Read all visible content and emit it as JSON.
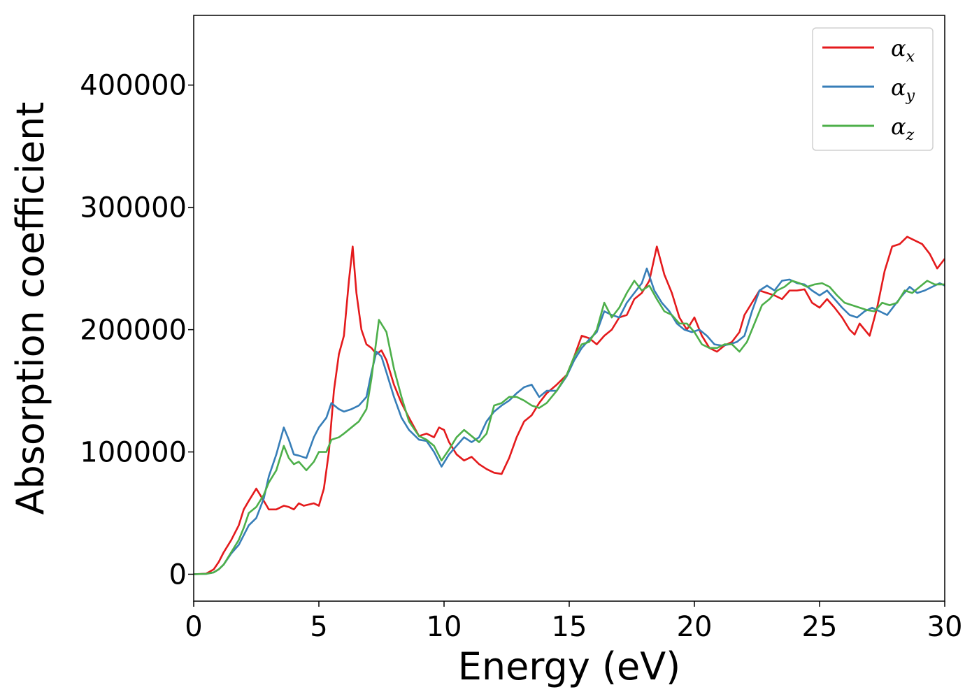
{
  "chart_data": {
    "type": "line",
    "xlabel": "Energy (eV)",
    "ylabel": "Absorption coefficient",
    "xlim": [
      0,
      30
    ],
    "ylim": [
      -22000,
      457000
    ],
    "xticks": [
      0,
      5,
      10,
      15,
      20,
      25,
      30
    ],
    "xtick_labels": [
      "0",
      "5",
      "10",
      "15",
      "20",
      "25",
      "30"
    ],
    "yticks": [
      0,
      100000,
      200000,
      300000,
      400000
    ],
    "ytick_labels": [
      "0",
      "100000",
      "200000",
      "300000",
      "400000"
    ],
    "grid": false,
    "legend_position": "top-right",
    "series": [
      {
        "name": "α",
        "name_sub": "x",
        "color": "#e41a1c",
        "x": [
          0,
          0.5,
          0.8,
          1.0,
          1.2,
          1.5,
          1.8,
          2.0,
          2.2,
          2.5,
          2.8,
          3.0,
          3.3,
          3.6,
          3.8,
          4.0,
          4.2,
          4.4,
          4.6,
          4.8,
          5.0,
          5.2,
          5.4,
          5.6,
          5.8,
          6.0,
          6.2,
          6.35,
          6.5,
          6.7,
          6.9,
          7.1,
          7.3,
          7.5,
          7.7,
          8.0,
          8.3,
          8.6,
          9.0,
          9.3,
          9.6,
          9.8,
          10.0,
          10.2,
          10.5,
          10.8,
          11.1,
          11.4,
          11.7,
          12.0,
          12.3,
          12.6,
          12.9,
          13.2,
          13.5,
          13.8,
          14.1,
          14.5,
          14.9,
          15.2,
          15.5,
          15.8,
          16.1,
          16.4,
          16.7,
          17.0,
          17.3,
          17.6,
          17.9,
          18.2,
          18.5,
          18.8,
          19.1,
          19.4,
          19.7,
          20.0,
          20.3,
          20.6,
          20.9,
          21.2,
          21.5,
          21.8,
          22.0,
          22.3,
          22.6,
          22.9,
          23.2,
          23.5,
          23.8,
          24.1,
          24.4,
          24.7,
          25.0,
          25.3,
          25.6,
          25.9,
          26.2,
          26.4,
          26.6,
          26.8,
          27.0,
          27.3,
          27.6,
          27.9,
          28.2,
          28.5,
          28.8,
          29.1,
          29.4,
          29.7,
          30.0
        ],
        "y": [
          0,
          500,
          4000,
          10000,
          18000,
          28000,
          40000,
          53000,
          60000,
          70000,
          60000,
          53000,
          53000,
          56000,
          55000,
          53000,
          58000,
          56000,
          57000,
          58000,
          56000,
          70000,
          100000,
          150000,
          180000,
          195000,
          240000,
          268000,
          230000,
          200000,
          188000,
          185000,
          180000,
          183000,
          175000,
          155000,
          140000,
          128000,
          113000,
          115000,
          112000,
          120000,
          118000,
          108000,
          98000,
          93000,
          96000,
          90000,
          86000,
          83000,
          82000,
          95000,
          112000,
          125000,
          130000,
          140000,
          148000,
          155000,
          163000,
          178000,
          195000,
          193000,
          188000,
          195000,
          200000,
          210000,
          212000,
          225000,
          230000,
          240000,
          268000,
          245000,
          230000,
          210000,
          200000,
          210000,
          195000,
          185000,
          182000,
          187000,
          190000,
          198000,
          212000,
          222000,
          232000,
          230000,
          228000,
          225000,
          232000,
          232000,
          233000,
          222000,
          218000,
          225000,
          218000,
          210000,
          200000,
          196000,
          205000,
          200000,
          195000,
          218000,
          248000,
          268000,
          270000,
          276000,
          273000,
          270000,
          262000,
          250000,
          258000
        ]
      },
      {
        "name": "α",
        "name_sub": "y",
        "color": "#377eb8",
        "x": [
          0,
          0.5,
          0.8,
          1.0,
          1.2,
          1.5,
          1.8,
          2.0,
          2.2,
          2.5,
          2.8,
          3.0,
          3.3,
          3.6,
          3.8,
          4.0,
          4.2,
          4.5,
          4.8,
          5.0,
          5.3,
          5.5,
          5.8,
          6.0,
          6.3,
          6.6,
          6.9,
          7.1,
          7.3,
          7.5,
          7.7,
          8.0,
          8.3,
          8.6,
          9.0,
          9.3,
          9.6,
          9.9,
          10.2,
          10.5,
          10.8,
          11.1,
          11.4,
          11.7,
          12.0,
          12.3,
          12.6,
          12.9,
          13.2,
          13.5,
          13.8,
          14.1,
          14.5,
          14.9,
          15.2,
          15.5,
          15.8,
          16.1,
          16.4,
          16.7,
          17.0,
          17.3,
          17.6,
          17.9,
          18.1,
          18.4,
          18.7,
          19.0,
          19.3,
          19.6,
          19.9,
          20.2,
          20.5,
          20.8,
          21.1,
          21.4,
          21.7,
          22.0,
          22.3,
          22.6,
          22.9,
          23.2,
          23.5,
          23.8,
          24.1,
          24.4,
          24.7,
          25.0,
          25.3,
          25.6,
          25.9,
          26.2,
          26.5,
          26.8,
          27.1,
          27.4,
          27.7,
          28.0,
          28.3,
          28.6,
          28.9,
          29.2,
          29.5,
          29.8,
          30.0
        ],
        "y": [
          0,
          300,
          1500,
          4000,
          8000,
          17000,
          24000,
          32000,
          40000,
          46000,
          62000,
          80000,
          98000,
          120000,
          110000,
          98000,
          97000,
          95000,
          112000,
          120000,
          128000,
          140000,
          135000,
          133000,
          135000,
          138000,
          145000,
          165000,
          182000,
          178000,
          165000,
          145000,
          128000,
          118000,
          110000,
          109000,
          100000,
          88000,
          98000,
          105000,
          112000,
          108000,
          112000,
          125000,
          133000,
          138000,
          142000,
          148000,
          153000,
          155000,
          145000,
          150000,
          150000,
          162000,
          175000,
          185000,
          192000,
          198000,
          215000,
          212000,
          210000,
          222000,
          230000,
          238000,
          250000,
          232000,
          222000,
          215000,
          205000,
          200000,
          198000,
          200000,
          195000,
          188000,
          187000,
          188000,
          190000,
          195000,
          215000,
          232000,
          236000,
          232000,
          240000,
          241000,
          238000,
          237000,
          232000,
          228000,
          232000,
          225000,
          218000,
          212000,
          210000,
          215000,
          218000,
          215000,
          212000,
          220000,
          228000,
          235000,
          230000,
          232000,
          235000,
          238000,
          236000
        ]
      },
      {
        "name": "α",
        "name_sub": "z",
        "color": "#4daf4a",
        "x": [
          0,
          0.5,
          0.8,
          1.0,
          1.2,
          1.5,
          1.8,
          2.0,
          2.2,
          2.5,
          2.8,
          3.0,
          3.3,
          3.6,
          3.8,
          4.0,
          4.2,
          4.5,
          4.8,
          5.0,
          5.3,
          5.5,
          5.8,
          6.0,
          6.3,
          6.6,
          6.9,
          7.1,
          7.4,
          7.7,
          8.0,
          8.3,
          8.6,
          9.0,
          9.3,
          9.6,
          9.9,
          10.2,
          10.5,
          10.8,
          11.1,
          11.4,
          11.7,
          12.0,
          12.3,
          12.6,
          12.9,
          13.2,
          13.5,
          13.8,
          14.1,
          14.5,
          14.9,
          15.2,
          15.5,
          15.8,
          16.1,
          16.4,
          16.7,
          17.0,
          17.3,
          17.6,
          17.9,
          18.2,
          18.5,
          18.8,
          19.1,
          19.4,
          19.7,
          20.0,
          20.3,
          20.6,
          20.9,
          21.2,
          21.5,
          21.8,
          22.1,
          22.4,
          22.7,
          23.0,
          23.3,
          23.6,
          23.9,
          24.2,
          24.5,
          24.8,
          25.1,
          25.4,
          25.7,
          26.0,
          26.3,
          26.6,
          26.9,
          27.2,
          27.5,
          27.8,
          28.1,
          28.4,
          28.7,
          29.0,
          29.3,
          29.6,
          30.0
        ],
        "y": [
          0,
          300,
          1500,
          4000,
          8000,
          18000,
          28000,
          38000,
          50000,
          55000,
          65000,
          75000,
          85000,
          105000,
          95000,
          90000,
          92000,
          85000,
          92000,
          100000,
          100000,
          110000,
          112000,
          115000,
          120000,
          125000,
          135000,
          160000,
          208000,
          198000,
          168000,
          145000,
          125000,
          113000,
          110000,
          105000,
          93000,
          102000,
          112000,
          118000,
          113000,
          108000,
          115000,
          138000,
          140000,
          145000,
          145000,
          142000,
          138000,
          136000,
          140000,
          150000,
          163000,
          178000,
          188000,
          190000,
          200000,
          222000,
          210000,
          218000,
          230000,
          240000,
          232000,
          236000,
          225000,
          215000,
          212000,
          205000,
          205000,
          198000,
          188000,
          185000,
          185000,
          188000,
          188000,
          182000,
          190000,
          205000,
          220000,
          225000,
          232000,
          235000,
          240000,
          238000,
          235000,
          237000,
          238000,
          235000,
          228000,
          222000,
          220000,
          218000,
          216000,
          215000,
          222000,
          220000,
          222000,
          232000,
          230000,
          235000,
          240000,
          237000,
          237000
        ]
      }
    ]
  }
}
